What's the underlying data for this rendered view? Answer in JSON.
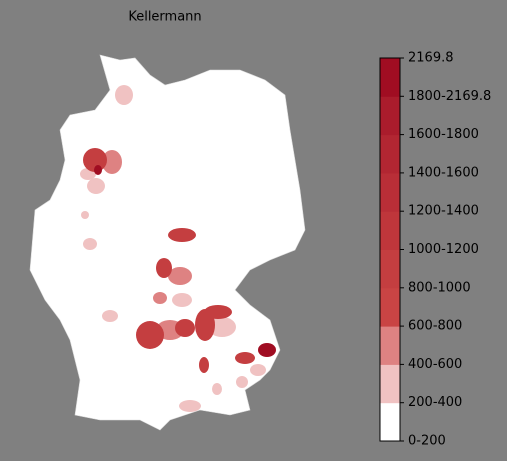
{
  "title": "Kellermann",
  "colorbar": {
    "labels": [
      "0-200",
      "200-400",
      "400-600",
      "600-800",
      "800-1000",
      "1000-1200",
      "1200-1400",
      "1400-1600",
      "1600-1800",
      "1800-2169.8",
      "2169.8"
    ],
    "colors": [
      "#ffffff",
      "#f0c2c2",
      "#de8282",
      "#c94444",
      "#c43e40",
      "#bf363b",
      "#b92e37",
      "#b22632",
      "#aa1c2c",
      "#a00d22"
    ]
  }
}
